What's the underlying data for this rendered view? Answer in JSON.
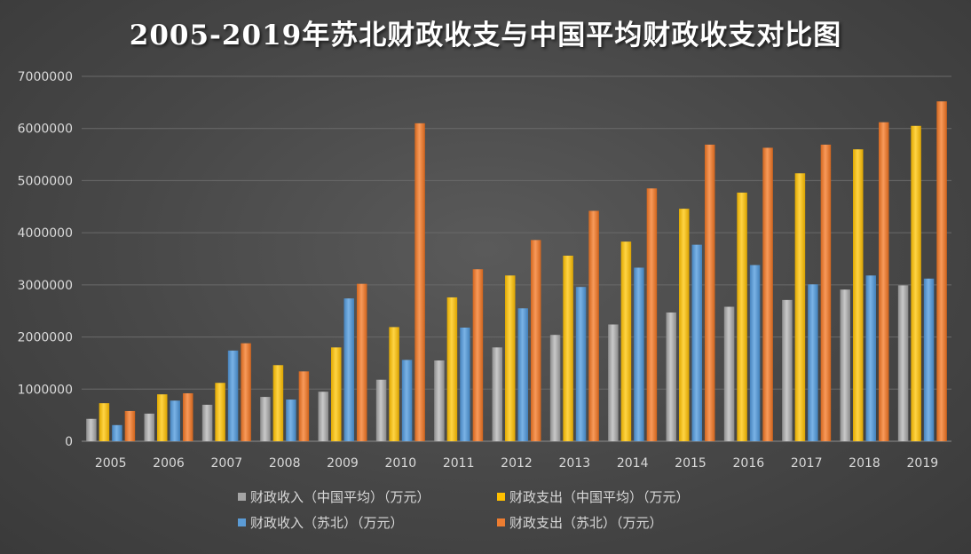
{
  "chart_data": {
    "type": "bar",
    "title": "2005-2019年苏北财政收支与中国平均财政收支对比图",
    "categories": [
      "2005",
      "2006",
      "2007",
      "2008",
      "2009",
      "2010",
      "2011",
      "2012",
      "2013",
      "2014",
      "2015",
      "2016",
      "2017",
      "2018",
      "2019"
    ],
    "ylim": [
      0,
      7000000
    ],
    "yticks": [
      0,
      1000000,
      2000000,
      3000000,
      4000000,
      5000000,
      6000000,
      7000000
    ],
    "grid": true,
    "legend_position": "bottom",
    "series": [
      {
        "name": "财政收入（中国平均）（万元）",
        "color": "#a5a5a5",
        "values": [
          430000,
          530000,
          700000,
          850000,
          950000,
          1180000,
          1550000,
          1800000,
          2040000,
          2240000,
          2470000,
          2580000,
          2710000,
          2910000,
          2990000
        ]
      },
      {
        "name": "财政支出（中国平均）（万元）",
        "color": "#ffc000",
        "values": [
          730000,
          900000,
          1120000,
          1460000,
          1800000,
          2190000,
          2760000,
          3180000,
          3560000,
          3830000,
          4460000,
          4770000,
          5140000,
          5600000,
          6050000
        ]
      },
      {
        "name": "财政收入（苏北）（万元）",
        "color": "#5b9bd5",
        "values": [
          310000,
          780000,
          1740000,
          800000,
          2740000,
          1560000,
          2180000,
          2550000,
          2960000,
          3330000,
          3770000,
          3380000,
          3010000,
          3180000,
          3120000
        ]
      },
      {
        "name": "财政支出（苏北）（万元）",
        "color": "#ed7d31",
        "values": [
          580000,
          920000,
          1880000,
          1340000,
          3020000,
          6100000,
          3300000,
          3860000,
          4420000,
          4850000,
          5690000,
          5630000,
          5690000,
          6120000,
          6520000
        ]
      }
    ]
  }
}
